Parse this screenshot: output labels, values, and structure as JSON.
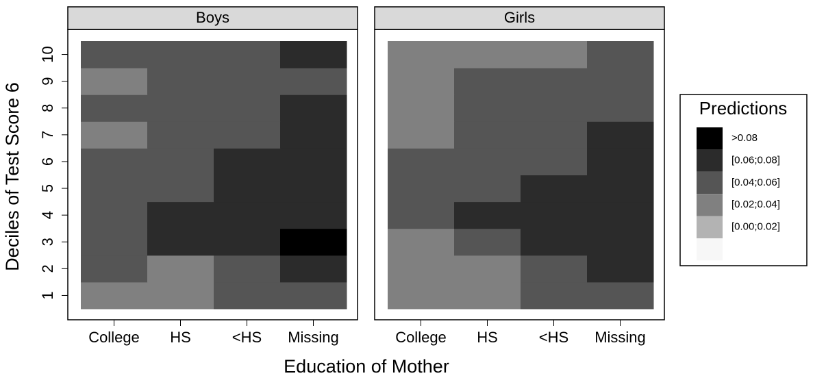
{
  "chart_data": {
    "type": "heatmap",
    "x_label": "Education of Mother",
    "y_label": "Deciles of Test Score 6",
    "categories": [
      "College",
      "HS",
      "<HS",
      "Missing"
    ],
    "ylim": [
      0.5,
      10.5
    ],
    "yticks": [
      1,
      2,
      3,
      4,
      5,
      6,
      7,
      8,
      9,
      10
    ],
    "legend_title": "Predictions",
    "legend": [
      {
        "label": ">0.08",
        "color": "#000000",
        "lo": 0.08
      },
      {
        "label": "[0.06;0.08]",
        "color": "#2b2b2b",
        "lo": 0.06
      },
      {
        "label": "[0.04;0.06]",
        "color": "#555555",
        "lo": 0.04
      },
      {
        "label": "[0.02;0.04]",
        "color": "#808080",
        "lo": 0.02
      },
      {
        "label": "[0.00;0.02]",
        "color": "#b3b3b3",
        "lo": 0.0
      },
      {
        "label": null,
        "color": "#f7f7f7",
        "lo": null
      }
    ],
    "panels": [
      {
        "title": "Boys",
        "values": [
          [
            0.03,
            0.03,
            0.05,
            0.05
          ],
          [
            0.05,
            0.03,
            0.05,
            0.07
          ],
          [
            0.05,
            0.07,
            0.07,
            0.09
          ],
          [
            0.05,
            0.07,
            0.07,
            0.07
          ],
          [
            0.05,
            0.05,
            0.07,
            0.07
          ],
          [
            0.05,
            0.05,
            0.07,
            0.07
          ],
          [
            0.03,
            0.05,
            0.05,
            0.07
          ],
          [
            0.05,
            0.05,
            0.05,
            0.07
          ],
          [
            0.03,
            0.05,
            0.05,
            0.05
          ],
          [
            0.05,
            0.05,
            0.05,
            0.07
          ]
        ]
      },
      {
        "title": "Girls",
        "values": [
          [
            0.03,
            0.03,
            0.05,
            0.05
          ],
          [
            0.03,
            0.03,
            0.05,
            0.07
          ],
          [
            0.03,
            0.05,
            0.07,
            0.07
          ],
          [
            0.05,
            0.07,
            0.07,
            0.07
          ],
          [
            0.05,
            0.05,
            0.07,
            0.07
          ],
          [
            0.05,
            0.05,
            0.05,
            0.07
          ],
          [
            0.03,
            0.05,
            0.05,
            0.07
          ],
          [
            0.03,
            0.05,
            0.05,
            0.05
          ],
          [
            0.03,
            0.05,
            0.05,
            0.05
          ],
          [
            0.03,
            0.03,
            0.03,
            0.05
          ]
        ]
      }
    ]
  }
}
